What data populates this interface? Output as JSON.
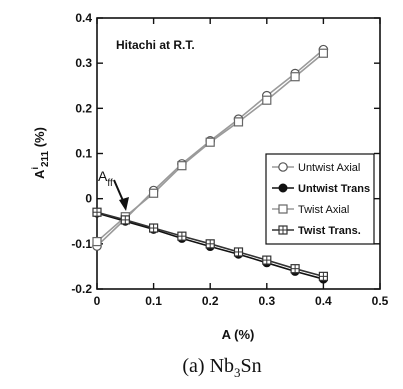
{
  "chart_data": {
    "type": "line",
    "annotation": "Hitachi at R.T.",
    "arrow_label_main": "A",
    "arrow_label_sub": "ff",
    "xlabel": "A (%)",
    "ylabel_main": "A",
    "ylabel_sup": "i",
    "ylabel_sub": "211",
    "ylabel_unit": "(%)",
    "caption_prefix": "(a)",
    "caption_main": "Nb",
    "caption_sub": "3",
    "caption_suffix": "Sn",
    "xlim": [
      0,
      0.5
    ],
    "ylim": [
      -0.2,
      0.4
    ],
    "x_ticks": [
      "0",
      "0.1",
      "0.2",
      "0.3",
      "0.4",
      "0.5"
    ],
    "y_ticks": [
      "-0.2",
      "-0.1",
      "0",
      "0.1",
      "0.2",
      "0.3",
      "0.4"
    ],
    "grid": false,
    "legend_position": "right",
    "series": [
      {
        "name": "Untwist Axial",
        "marker": "open-circle",
        "line_color": "#9a9a9a",
        "x": [
          0,
          0.05,
          0.1,
          0.15,
          0.2,
          0.25,
          0.3,
          0.35,
          0.4
        ],
        "y": [
          -0.105,
          -0.045,
          0.018,
          0.077,
          0.128,
          0.176,
          0.228,
          0.277,
          0.33
        ]
      },
      {
        "name": "Untwist Trans",
        "marker": "filled-circle",
        "line_color": "#111111",
        "x": [
          0,
          0.05,
          0.1,
          0.15,
          0.2,
          0.25,
          0.3,
          0.35,
          0.4
        ],
        "y": [
          -0.032,
          -0.05,
          -0.068,
          -0.088,
          -0.106,
          -0.123,
          -0.142,
          -0.161,
          -0.178
        ]
      },
      {
        "name": "Twist Axial",
        "marker": "open-square",
        "line_color": "#9a9a9a",
        "x": [
          0,
          0.05,
          0.1,
          0.15,
          0.2,
          0.25,
          0.3,
          0.35,
          0.4
        ],
        "y": [
          -0.095,
          -0.04,
          0.012,
          0.073,
          0.125,
          0.17,
          0.218,
          0.27,
          0.322
        ]
      },
      {
        "name": "Twist Trans.",
        "marker": "crossed-square",
        "line_color": "#333333",
        "x": [
          0,
          0.05,
          0.1,
          0.15,
          0.2,
          0.25,
          0.3,
          0.35,
          0.4
        ],
        "y": [
          -0.03,
          -0.047,
          -0.065,
          -0.083,
          -0.1,
          -0.118,
          -0.136,
          -0.155,
          -0.172
        ]
      }
    ]
  }
}
